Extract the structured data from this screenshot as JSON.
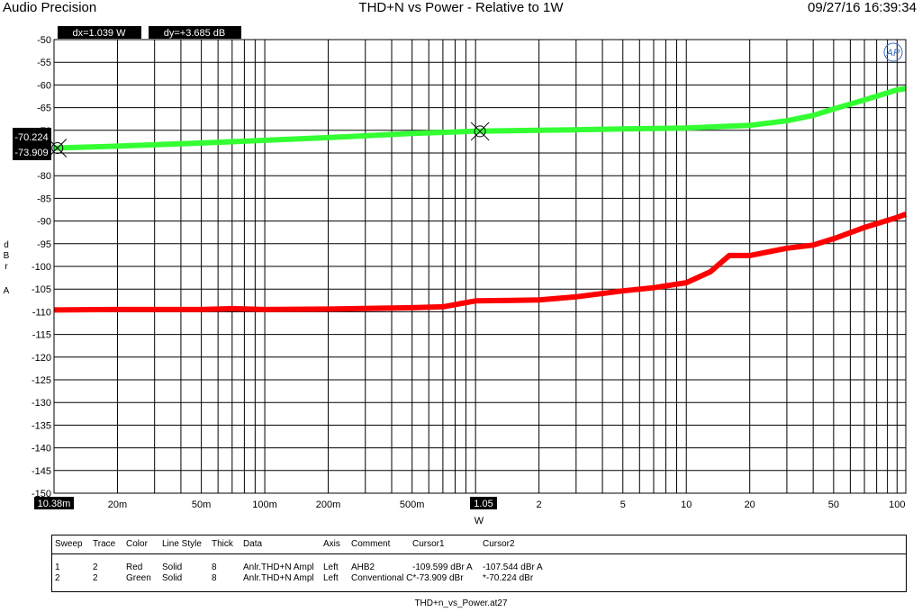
{
  "header": {
    "brand": "Audio Precision",
    "title": "THD+N vs Power - Relative to 1W",
    "timestamp": "09/27/16 16:39:34"
  },
  "readouts": {
    "dx": "dx=1.039  W",
    "dy": "dy=+3.685  dB",
    "cursor_y1": "-70.224",
    "cursor_y2": "-73.909",
    "cursor_x1": "10.38m",
    "cursor_x2": "1.05"
  },
  "logo": "AP",
  "chart_data": {
    "type": "line",
    "title": "THD+N vs Power - Relative to 1W",
    "xlabel": "W",
    "ylabel": "dBr A",
    "xscale": "log",
    "xlim": [
      0.01,
      110
    ],
    "ylim": [
      -150,
      -50
    ],
    "grid": true,
    "x_ticks": [
      "20m",
      "50m",
      "100m",
      "200m",
      "500m",
      "2",
      "5",
      "10",
      "20",
      "50",
      "100"
    ],
    "x_tick_values": [
      0.02,
      0.05,
      0.1,
      0.2,
      0.5,
      2,
      5,
      10,
      20,
      50,
      100
    ],
    "y_ticks": [
      -50,
      -55,
      -60,
      -65,
      -70,
      -75,
      -80,
      -85,
      -90,
      -95,
      -100,
      -105,
      -110,
      -115,
      -120,
      -125,
      -130,
      -135,
      -140,
      -145,
      -150
    ],
    "y_tick_labels": [
      "-50",
      "-55",
      "-60",
      "-65",
      "-70",
      "-75",
      "-80",
      "-85",
      "-90",
      "-95",
      "-100",
      "-105",
      "-110",
      "-115",
      "-120",
      "-125",
      "-130",
      "-135",
      "-140",
      "-145",
      "-150"
    ],
    "cursors": [
      {
        "x": 0.01038,
        "y": -73.909
      },
      {
        "x": 1.05,
        "y": -70.224
      }
    ],
    "series": [
      {
        "color": "#ff0000",
        "x": [
          0.01,
          0.02,
          0.05,
          0.07,
          0.1,
          0.2,
          0.5,
          0.7,
          1,
          1.5,
          2,
          3,
          5,
          7,
          10,
          13,
          16,
          20,
          30,
          40,
          50,
          70,
          100,
          110
        ],
        "y": [
          -109.6,
          -109.5,
          -109.5,
          -109.3,
          -109.5,
          -109.4,
          -109.1,
          -108.9,
          -107.6,
          -107.5,
          -107.4,
          -106.7,
          -105.4,
          -104.7,
          -103.6,
          -101.2,
          -97.6,
          -97.6,
          -96.0,
          -95.3,
          -93.9,
          -91.4,
          -89.2,
          -88.5
        ]
      },
      {
        "color": "#33ff33",
        "x": [
          0.01,
          0.02,
          0.05,
          0.1,
          0.2,
          0.5,
          1,
          2,
          5,
          10,
          20,
          30,
          40,
          50,
          70,
          100,
          110
        ],
        "y": [
          -73.9,
          -73.5,
          -72.8,
          -72.2,
          -71.6,
          -70.7,
          -70.2,
          -70.0,
          -69.7,
          -69.5,
          -68.9,
          -67.9,
          -66.7,
          -65.3,
          -63.3,
          -61.1,
          -60.8
        ]
      }
    ]
  },
  "table": {
    "headers": [
      "Sweep",
      "Trace",
      "Color",
      "Line Style",
      "Thick",
      "Data",
      "Axis",
      "Comment",
      "Cursor1",
      "Cursor2"
    ],
    "rows": [
      [
        "1",
        "2",
        "Red",
        "Solid",
        "8",
        "Anlr.THD+N Ampl",
        "Left",
        "AHB2",
        "-109.599 dBr A",
        "-107.544 dBr A"
      ],
      [
        "2",
        "2",
        "Green",
        "Solid",
        "8",
        "Anlr.THD+N Ampl",
        "Left",
        "Conventional C*-73.909 dBr",
        "",
        "*-70.224 dBr"
      ]
    ]
  },
  "footer": {
    "filename": "THD+n_vs_Power.at27"
  }
}
